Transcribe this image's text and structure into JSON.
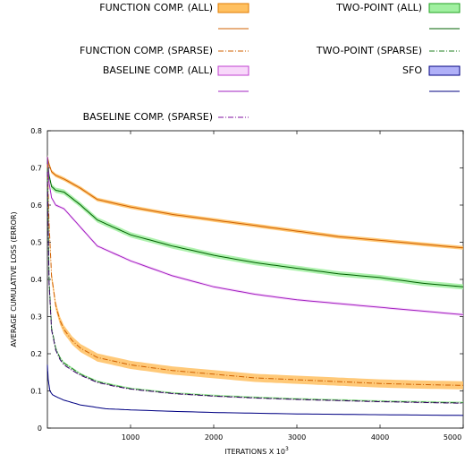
{
  "chart_data": {
    "type": "line",
    "xlabel": "ITERATIONS X 10",
    "xlabel_superscript": "3",
    "ylabel": "AVERAGE CUMULATIVE LOSS (ERROR)",
    "xlim": [
      0,
      5000
    ],
    "ylim": [
      0,
      0.8
    ],
    "xticks": [
      1000,
      2000,
      3000,
      4000,
      5000
    ],
    "xtick_labels": [
      "1000",
      "2000",
      "3000",
      "4000",
      "5000"
    ],
    "yticks": [
      0,
      0.1,
      0.2,
      0.3,
      0.4,
      0.5,
      0.6,
      0.7,
      0.8
    ],
    "ytick_labels": [
      "0",
      "0.1",
      "0.2",
      "0.3",
      "0.4",
      "0.5",
      "0.6",
      "0.7",
      "0.8"
    ],
    "grid": false,
    "legend_placement": "top",
    "legend": [
      {
        "name": "FUNCTION COMP. (ALL)",
        "kind": "band",
        "color": "#e07b00",
        "fill": "#ffc060"
      },
      {
        "name": "",
        "kind": "line",
        "color": "#d06000"
      },
      {
        "name": "FUNCTION COMP. (SPARSE)",
        "kind": "dashdot",
        "color": "#d06000"
      },
      {
        "name": "BASELINE COMP. (ALL)",
        "kind": "band",
        "color": "#c040d0",
        "fill": "#f8d8fa"
      },
      {
        "name": "",
        "kind": "line",
        "color": "#a020c0"
      },
      {
        "name": "BASELINE COMP. (SPARSE)",
        "kind": "dashdot",
        "color": "#8010a0"
      },
      {
        "name": "TWO-POINT (ALL)",
        "kind": "band",
        "color": "#20a020",
        "fill": "#a0f0a0"
      },
      {
        "name": "",
        "kind": "line",
        "color": "#006000"
      },
      {
        "name": "TWO-POINT (SPARSE)",
        "kind": "dashdot",
        "color": "#208020"
      },
      {
        "name": "SFO",
        "kind": "band",
        "color": "#000080",
        "fill": "#b0b0f8"
      },
      {
        "name": "",
        "kind": "line",
        "color": "#000080"
      }
    ],
    "series": [
      {
        "id": "function-all",
        "color": "#d06000",
        "band": "#ffc060",
        "dash": "",
        "x": [
          0,
          20,
          50,
          100,
          200,
          400,
          600,
          800,
          1000,
          1500,
          2000,
          2500,
          3000,
          3500,
          4000,
          4500,
          5000
        ],
        "y": [
          0.73,
          0.71,
          0.69,
          0.68,
          0.67,
          0.645,
          0.615,
          0.605,
          0.595,
          0.575,
          0.56,
          0.545,
          0.53,
          0.515,
          0.505,
          0.495,
          0.485
        ],
        "band_width": 0.005
      },
      {
        "id": "two-point-all",
        "color": "#006000",
        "band": "#a0f0a0",
        "dash": "",
        "x": [
          0,
          20,
          50,
          100,
          200,
          400,
          600,
          800,
          1000,
          1500,
          2000,
          2500,
          3000,
          3500,
          4000,
          4500,
          5000
        ],
        "y": [
          0.73,
          0.68,
          0.65,
          0.64,
          0.635,
          0.6,
          0.56,
          0.54,
          0.52,
          0.49,
          0.465,
          0.445,
          0.43,
          0.415,
          0.405,
          0.39,
          0.38
        ],
        "band_width": 0.007
      },
      {
        "id": "baseline-all",
        "color": "#a020c0",
        "band": "#f8d8fa",
        "dash": "",
        "x": [
          0,
          20,
          50,
          100,
          200,
          400,
          600,
          800,
          1000,
          1500,
          2000,
          2500,
          3000,
          3500,
          4000,
          4500,
          5000
        ],
        "y": [
          0.73,
          0.66,
          0.62,
          0.6,
          0.59,
          0.54,
          0.49,
          0.47,
          0.45,
          0.41,
          0.38,
          0.36,
          0.345,
          0.335,
          0.325,
          0.315,
          0.305
        ],
        "band_width": 0.004
      },
      {
        "id": "function-sparse",
        "color": "#d06000",
        "band": "#ffc060",
        "dash": "6,2,1,2",
        "x": [
          0,
          20,
          50,
          100,
          150,
          200,
          300,
          400,
          600,
          800,
          1000,
          1500,
          2000,
          2500,
          3000,
          3500,
          4000,
          4500,
          5000
        ],
        "y": [
          0.71,
          0.55,
          0.41,
          0.33,
          0.29,
          0.265,
          0.235,
          0.215,
          0.19,
          0.18,
          0.17,
          0.155,
          0.145,
          0.135,
          0.13,
          0.125,
          0.12,
          0.117,
          0.115
        ],
        "band_width": 0.011
      },
      {
        "id": "two-point-sparse",
        "color": "#208020",
        "band": "#a0f0a0",
        "dash": "6,2,1,2",
        "x": [
          0,
          20,
          50,
          100,
          150,
          200,
          300,
          400,
          600,
          800,
          1000,
          1500,
          2000,
          2500,
          3000,
          3500,
          4000,
          4500,
          5000
        ],
        "y": [
          0.7,
          0.4,
          0.27,
          0.215,
          0.19,
          0.175,
          0.16,
          0.145,
          0.125,
          0.115,
          0.106,
          0.094,
          0.087,
          0.082,
          0.078,
          0.075,
          0.072,
          0.07,
          0.068
        ],
        "band_width": 0.003
      },
      {
        "id": "baseline-sparse",
        "color": "#300060",
        "band": "#f8d8fa",
        "dash": "6,2,1,2",
        "x": [
          0,
          20,
          50,
          100,
          150,
          200,
          300,
          400,
          600,
          800,
          1000,
          1500,
          2000,
          2500,
          3000,
          3500,
          4000,
          4500,
          5000
        ],
        "y": [
          0.69,
          0.39,
          0.265,
          0.21,
          0.185,
          0.17,
          0.155,
          0.142,
          0.123,
          0.113,
          0.105,
          0.093,
          0.086,
          0.081,
          0.077,
          0.074,
          0.071,
          0.069,
          0.067
        ],
        "band_width": 0.002
      },
      {
        "id": "sfo",
        "color": "#000080",
        "band": "#b0b0f8",
        "dash": "",
        "x": [
          0,
          10,
          30,
          60,
          100,
          200,
          400,
          700,
          1000,
          1500,
          2000,
          2500,
          3000,
          3500,
          4000,
          4500,
          5000
        ],
        "y": [
          0.17,
          0.13,
          0.1,
          0.09,
          0.085,
          0.075,
          0.062,
          0.052,
          0.049,
          0.045,
          0.042,
          0.04,
          0.038,
          0.037,
          0.036,
          0.035,
          0.034
        ],
        "band_width": 0.001
      }
    ]
  }
}
